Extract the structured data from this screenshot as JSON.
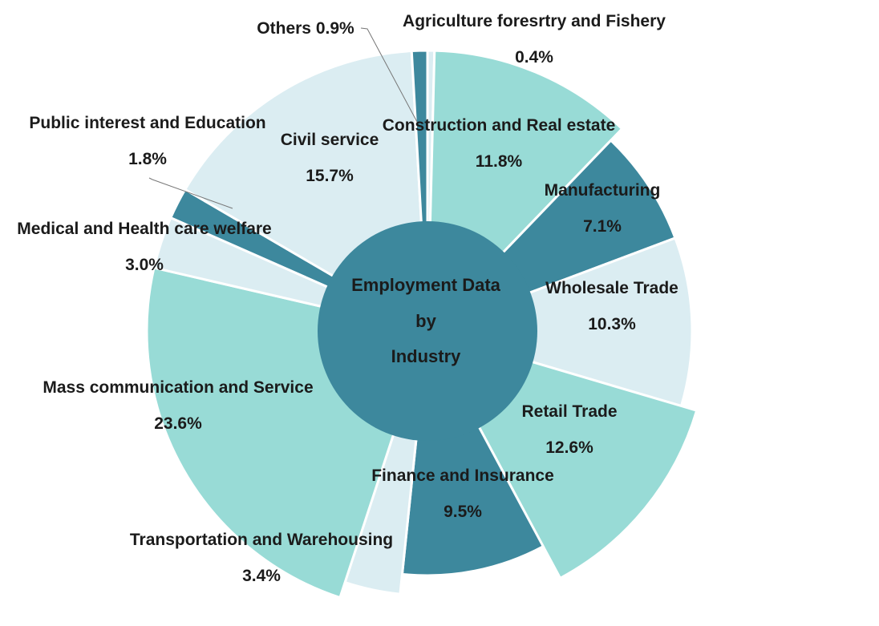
{
  "chart_data": {
    "type": "pie",
    "title": "",
    "center_label": [
      "Employment Data",
      "by",
      "Industry"
    ],
    "unit": "%",
    "colors": {
      "light": "#dbedf2",
      "mint": "#98dbd6",
      "teal": "#3d889d",
      "leader": "#777777"
    },
    "slices": [
      {
        "name": "Agriculture foresrtry and Fishery",
        "value": 0.4,
        "label": "0.4%",
        "color": "light"
      },
      {
        "name": "Construction and Real estate",
        "value": 11.8,
        "label": "11.8%",
        "color": "mint"
      },
      {
        "name": "Manufacturing",
        "value": 7.1,
        "label": "7.1%",
        "color": "teal"
      },
      {
        "name": "Wholesale Trade",
        "value": 10.3,
        "label": "10.3%",
        "color": "light"
      },
      {
        "name": "Retail Trade",
        "value": 12.6,
        "label": "12.6%",
        "color": "mint"
      },
      {
        "name": "Finance and Insurance",
        "value": 9.5,
        "label": "9.5%",
        "color": "teal"
      },
      {
        "name": "Transportation and Warehousing",
        "value": 3.4,
        "label": "3.4%",
        "color": "light"
      },
      {
        "name": "Mass communication and Service",
        "value": 23.6,
        "label": "23.6%",
        "color": "mint"
      },
      {
        "name": "Medical and Health care welfare",
        "value": 3.0,
        "label": "3.0%",
        "color": "light"
      },
      {
        "name": "Public interest and Education",
        "value": 1.8,
        "label": "1.8%",
        "color": "teal"
      },
      {
        "name": "Civil service",
        "value": 15.7,
        "label": "15.7%",
        "color": "light"
      },
      {
        "name": "Others",
        "value": 0.9,
        "label": "0.9%",
        "color": "teal"
      }
    ]
  }
}
